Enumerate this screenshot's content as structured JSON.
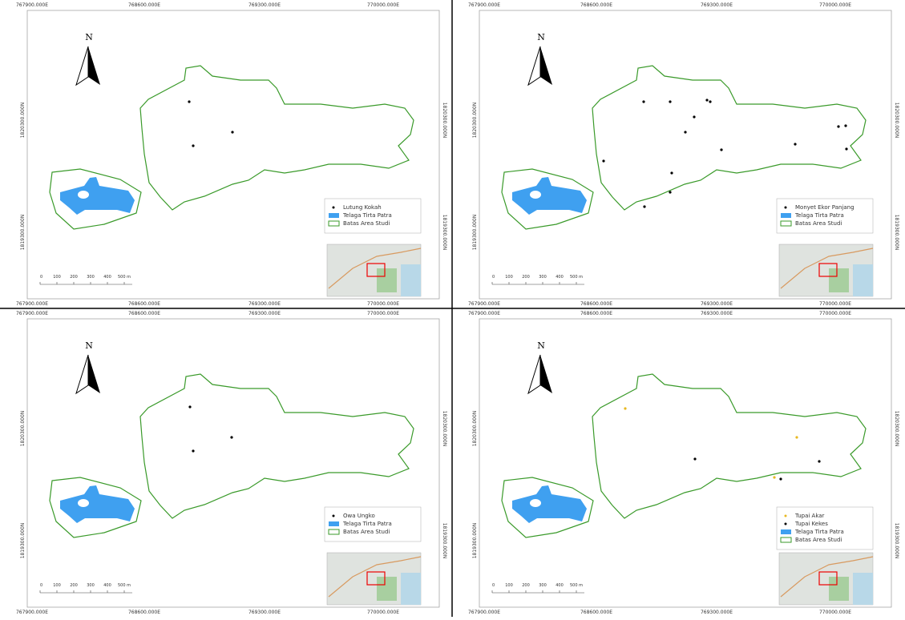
{
  "grid_labels": {
    "x": [
      "767900.000E",
      "768600.000E",
      "769300.000E",
      "770000.000E"
    ],
    "y": [
      "1820300.000N",
      "1819300.000N"
    ]
  },
  "north": "N",
  "scale_bar": [
    "0",
    "100",
    "200",
    "300",
    "400",
    "500 m"
  ],
  "panels": [
    {
      "legend": [
        "Lutung Kokah",
        "Telaga Tirta Patra",
        "Batas Area Studi"
      ]
    },
    {
      "legend": [
        "Monyet Ekor Panjang",
        "Telaga Tirta Patra",
        "Batas Area Studi"
      ]
    },
    {
      "legend": [
        "Owa Ungko",
        "Telaga Tirta Patra",
        "Batas Area Studi"
      ]
    },
    {
      "legend": [
        "Tupai Akar",
        "Tupai Kekes",
        "Telaga Tirta Patra",
        "Batas Area Studi"
      ]
    }
  ]
}
